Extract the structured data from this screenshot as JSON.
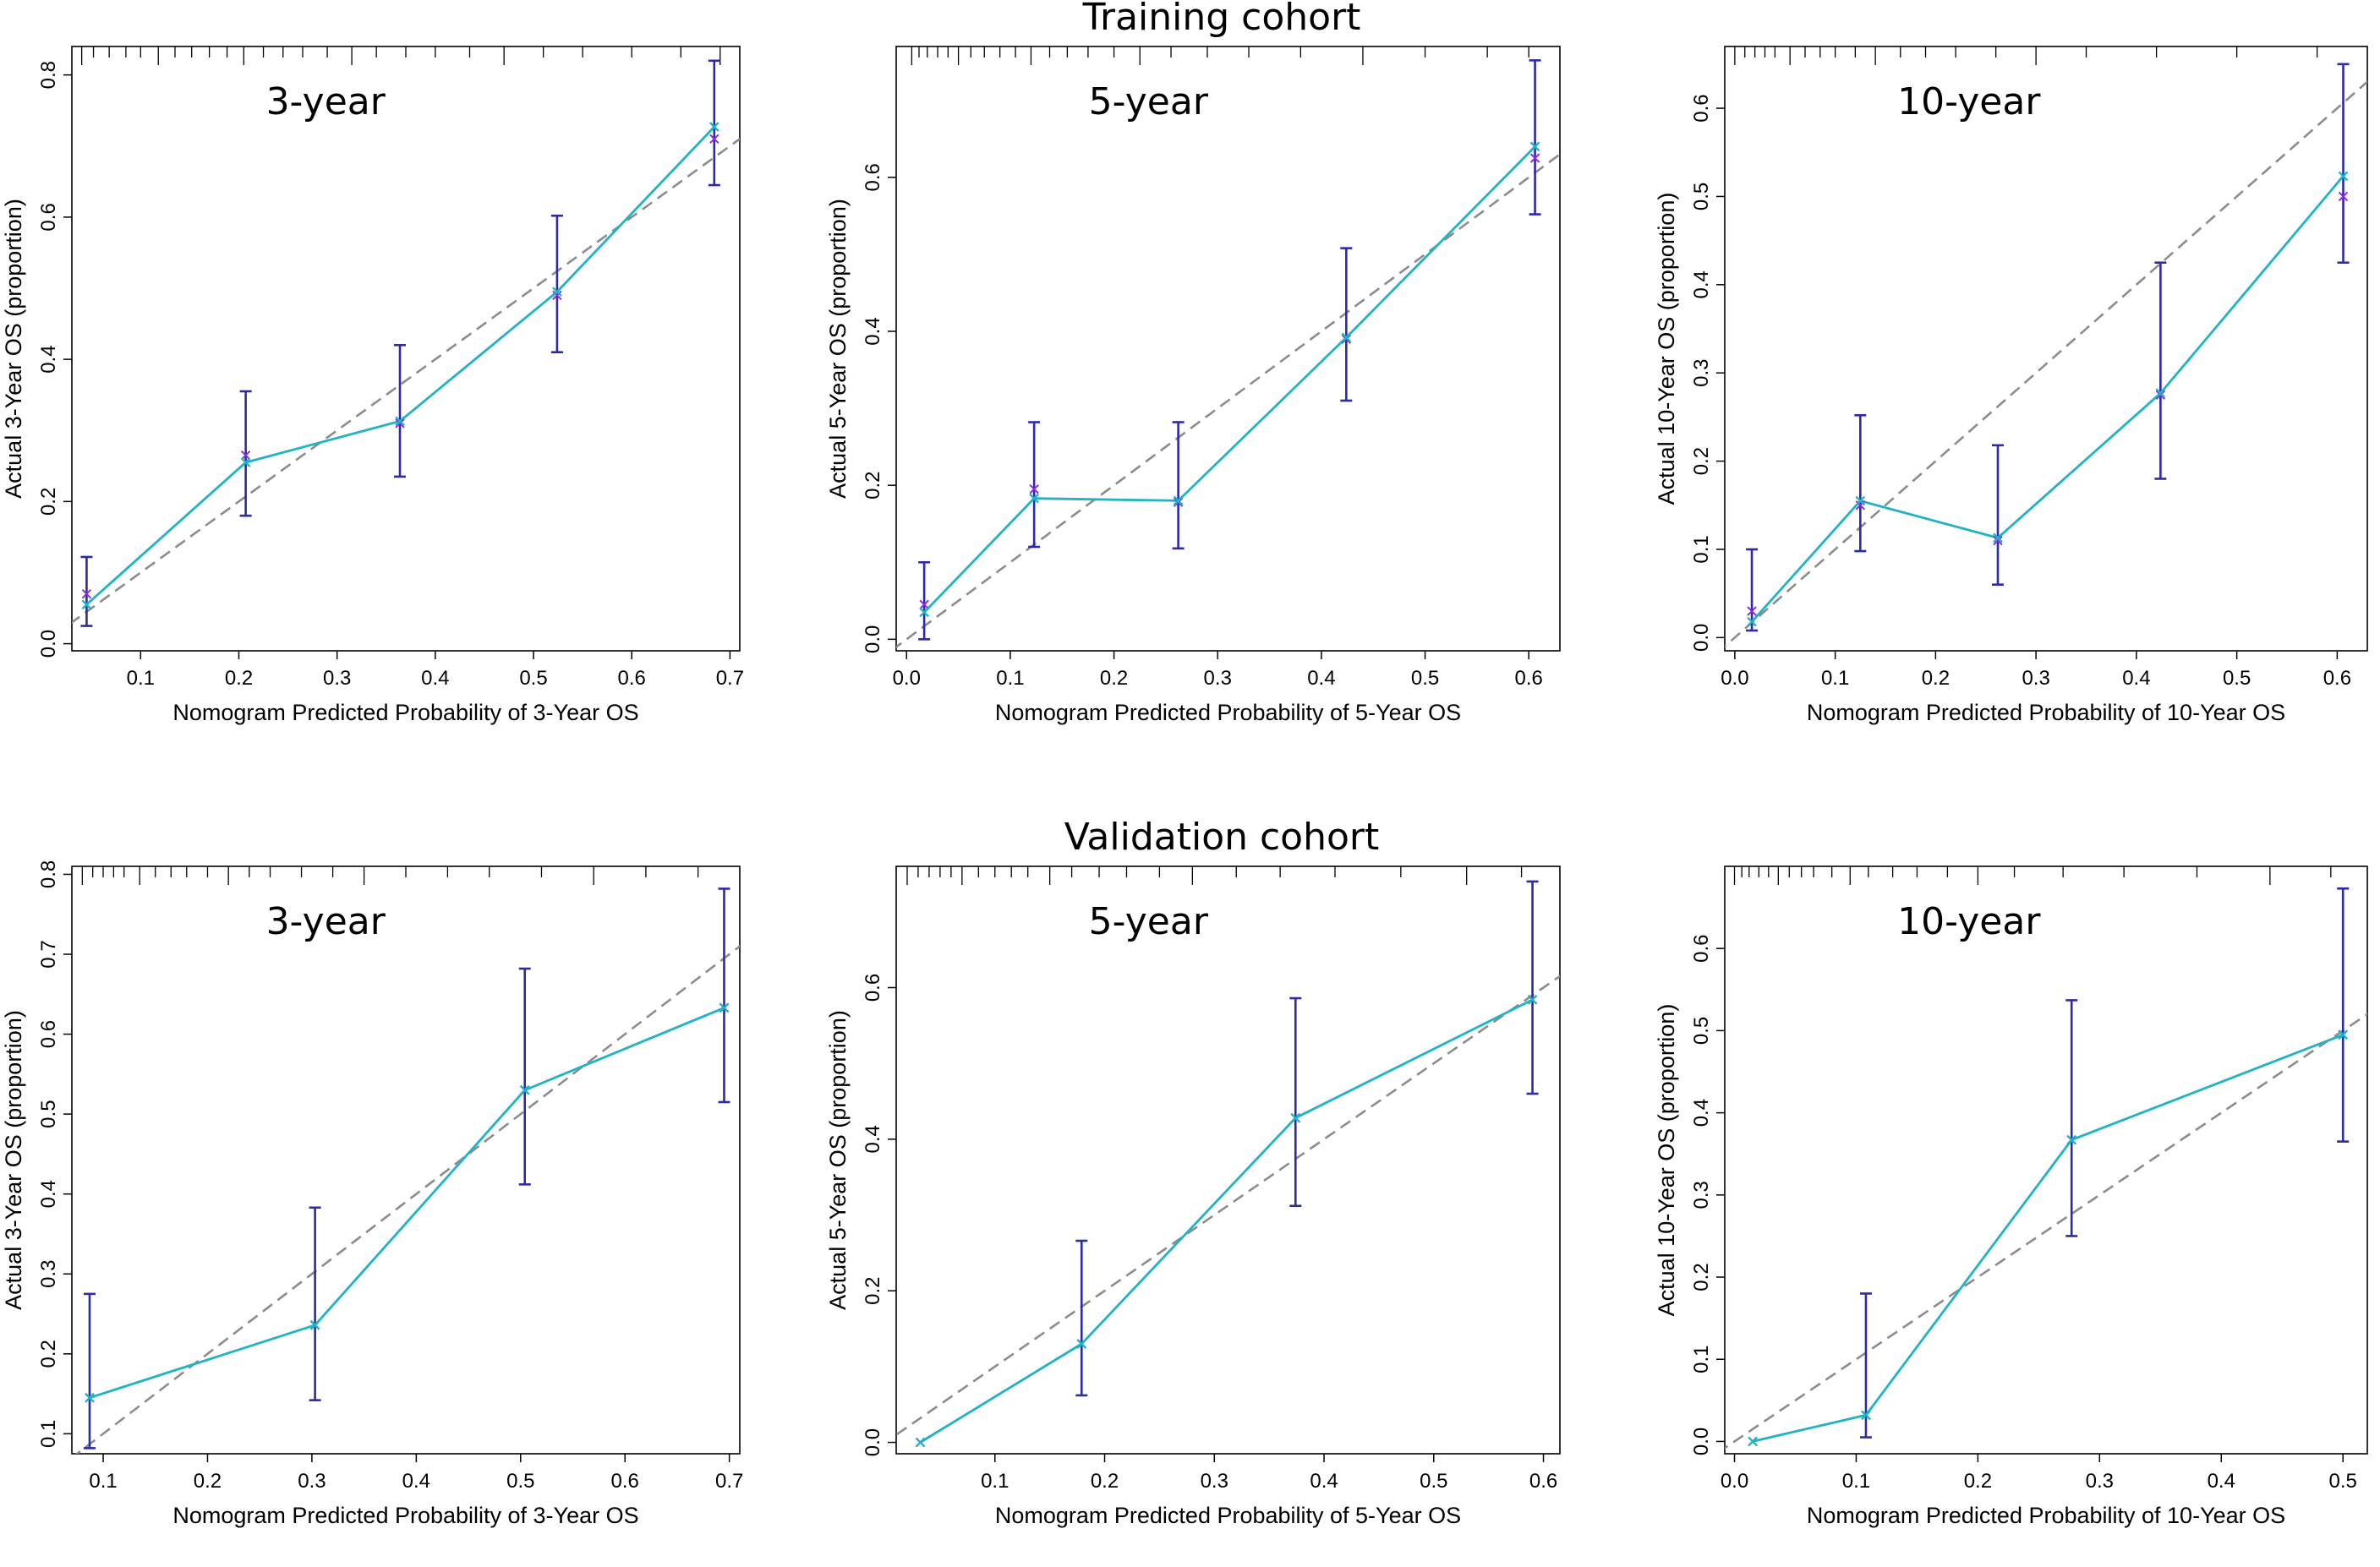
{
  "figure": {
    "training_title": "Training cohort",
    "validation_title": "Validation cohort"
  },
  "colors": {
    "calibration_line": "#1fb3c3",
    "error_bar": "#2b2ba8",
    "ideal_line": "#8c8c8c",
    "apparent_marker": "#8a2be2",
    "axis": "#000000"
  },
  "chart_data": [
    {
      "type": "line",
      "cohort": "Training cohort",
      "title": "3-year",
      "xlabel": "Nomogram Predicted Probability of 3-Year OS",
      "ylabel": "Actual 3-Year OS (proportion)",
      "xlim": [
        0.03,
        0.71
      ],
      "ylim": [
        -0.01,
        0.84
      ],
      "xticks": [
        0.1,
        0.2,
        0.3,
        0.4,
        0.5,
        0.6,
        0.7
      ],
      "xtick_labels": [
        "0.1",
        "0.2",
        "0.3",
        "0.4",
        "0.5",
        "0.6",
        "0.7"
      ],
      "yticks": [
        0.0,
        0.2,
        0.4,
        0.6,
        0.8
      ],
      "ytick_labels": [
        "0.0",
        "0.2",
        "0.4",
        "0.6",
        "0.8"
      ],
      "x": [
        0.045,
        0.207,
        0.364,
        0.524,
        0.684
      ],
      "observed": [
        0.055,
        0.255,
        0.313,
        0.495,
        0.727
      ],
      "apparent": [
        0.07,
        0.265,
        0.31,
        0.49,
        0.71
      ],
      "ci_lower": [
        0.025,
        0.18,
        0.235,
        0.41,
        0.645
      ],
      "ci_upper": [
        0.122,
        0.355,
        0.42,
        0.602,
        0.82
      ],
      "rug": [
        0.04,
        0.052,
        0.068,
        0.085,
        0.1,
        0.118,
        0.135,
        0.152,
        0.17,
        0.188,
        0.205,
        0.225,
        0.245,
        0.265,
        0.29,
        0.315,
        0.34,
        0.37,
        0.4,
        0.435,
        0.47,
        0.51,
        0.55,
        0.6,
        0.65,
        0.69
      ]
    },
    {
      "type": "line",
      "cohort": "Training cohort",
      "title": "5-year",
      "xlabel": "Nomogram Predicted Probability of 5-Year OS",
      "ylabel": "Actual 5-Year OS (proportion)",
      "xlim": [
        -0.01,
        0.63
      ],
      "ylim": [
        -0.015,
        0.77
      ],
      "xticks": [
        0.0,
        0.1,
        0.2,
        0.3,
        0.4,
        0.5,
        0.6
      ],
      "xtick_labels": [
        "0.0",
        "0.1",
        "0.2",
        "0.3",
        "0.4",
        "0.5",
        "0.6"
      ],
      "yticks": [
        0.0,
        0.2,
        0.4,
        0.6
      ],
      "ytick_labels": [
        "0.0",
        "0.2",
        "0.4",
        "0.6"
      ],
      "x": [
        0.017,
        0.123,
        0.262,
        0.424,
        0.606
      ],
      "observed": [
        0.035,
        0.183,
        0.18,
        0.392,
        0.64
      ],
      "apparent": [
        0.045,
        0.195,
        0.178,
        0.39,
        0.625
      ],
      "ci_lower": [
        0.0,
        0.12,
        0.118,
        0.31,
        0.552
      ],
      "ci_upper": [
        0.1,
        0.282,
        0.282,
        0.508,
        0.752
      ],
      "rug": [
        0.005,
        0.012,
        0.02,
        0.03,
        0.04,
        0.05,
        0.062,
        0.075,
        0.09,
        0.105,
        0.12,
        0.138,
        0.155,
        0.175,
        0.2,
        0.225,
        0.255,
        0.29,
        0.33,
        0.38,
        0.44,
        0.5,
        0.56,
        0.6
      ]
    },
    {
      "type": "line",
      "cohort": "Training cohort",
      "title": "10-year",
      "xlabel": "Nomogram Predicted Probability of 10-Year OS",
      "ylabel": "Actual 10-Year OS (proportion)",
      "xlim": [
        -0.01,
        0.63
      ],
      "ylim": [
        -0.015,
        0.67
      ],
      "xticks": [
        0.0,
        0.1,
        0.2,
        0.3,
        0.4,
        0.5,
        0.6
      ],
      "xtick_labels": [
        "0.0",
        "0.1",
        "0.2",
        "0.3",
        "0.4",
        "0.5",
        "0.6"
      ],
      "yticks": [
        0.0,
        0.1,
        0.2,
        0.3,
        0.4,
        0.5,
        0.6
      ],
      "ytick_labels": [
        "0.0",
        "0.1",
        "0.2",
        "0.3",
        "0.4",
        "0.5",
        "0.6"
      ],
      "x": [
        0.017,
        0.125,
        0.262,
        0.424,
        0.606
      ],
      "observed": [
        0.018,
        0.155,
        0.113,
        0.277,
        0.523
      ],
      "apparent": [
        0.03,
        0.15,
        0.11,
        0.275,
        0.5
      ],
      "ci_lower": [
        0.008,
        0.098,
        0.06,
        0.18,
        0.425
      ],
      "ci_upper": [
        0.1,
        0.252,
        0.218,
        0.425,
        0.65
      ],
      "rug": [
        0.0,
        0.01,
        0.02,
        0.03,
        0.04,
        0.055,
        0.07,
        0.085,
        0.1,
        0.12,
        0.14,
        0.165,
        0.19,
        0.22,
        0.26,
        0.3,
        0.35,
        0.42,
        0.5,
        0.58
      ]
    },
    {
      "type": "line",
      "cohort": "Validation cohort",
      "title": "3-year",
      "xlabel": "Nomogram Predicted Probability of 3-Year OS",
      "ylabel": "Actual 3-Year OS (proportion)",
      "xlim": [
        0.07,
        0.71
      ],
      "ylim": [
        0.075,
        0.81
      ],
      "xticks": [
        0.1,
        0.2,
        0.3,
        0.4,
        0.5,
        0.6,
        0.7
      ],
      "xtick_labels": [
        "0.1",
        "0.2",
        "0.3",
        "0.4",
        "0.5",
        "0.6",
        "0.7"
      ],
      "yticks": [
        0.1,
        0.2,
        0.3,
        0.4,
        0.5,
        0.6,
        0.7,
        0.8
      ],
      "ytick_labels": [
        "0.1",
        "0.2",
        "0.3",
        "0.4",
        "0.5",
        "0.6",
        "0.7",
        "0.8"
      ],
      "x": [
        0.087,
        0.303,
        0.504,
        0.695
      ],
      "observed": [
        0.145,
        0.236,
        0.53,
        0.633
      ],
      "apparent": [
        0.145,
        0.236,
        0.53,
        0.633
      ],
      "ci_lower": [
        0.082,
        0.142,
        0.412,
        0.515
      ],
      "ci_upper": [
        0.275,
        0.383,
        0.682,
        0.782
      ],
      "rug": [
        0.08,
        0.09,
        0.1,
        0.11,
        0.12,
        0.135,
        0.15,
        0.165,
        0.18,
        0.2,
        0.22,
        0.24,
        0.26,
        0.29,
        0.32,
        0.35,
        0.39,
        0.43,
        0.47,
        0.52,
        0.57,
        0.62,
        0.67
      ]
    },
    {
      "type": "line",
      "cohort": "Validation cohort",
      "title": "5-year",
      "xlabel": "Nomogram Predicted Probability of 5-Year OS",
      "ylabel": "Actual 5-Year OS (proportion)",
      "xlim": [
        0.01,
        0.615
      ],
      "ylim": [
        -0.015,
        0.76
      ],
      "xticks": [
        0.1,
        0.2,
        0.3,
        0.4,
        0.5,
        0.6
      ],
      "xtick_labels": [
        "0.1",
        "0.2",
        "0.3",
        "0.4",
        "0.5",
        "0.6"
      ],
      "yticks": [
        0.0,
        0.2,
        0.4,
        0.6
      ],
      "ytick_labels": [
        "0.0",
        "0.2",
        "0.4",
        "0.6"
      ],
      "x": [
        0.032,
        0.179,
        0.374,
        0.59
      ],
      "observed": [
        0.0,
        0.13,
        0.428,
        0.584
      ],
      "apparent": [
        0.0,
        0.13,
        0.428,
        0.584
      ],
      "ci_lower": [
        0.0,
        0.062,
        0.312,
        0.46
      ],
      "ci_upper": [
        0.0,
        0.266,
        0.586,
        0.74
      ],
      "rug": [
        0.02,
        0.03,
        0.04,
        0.05,
        0.06,
        0.07,
        0.085,
        0.1,
        0.115,
        0.13,
        0.15,
        0.17,
        0.195,
        0.22,
        0.25,
        0.28,
        0.32,
        0.36,
        0.41,
        0.47,
        0.53,
        0.58
      ]
    },
    {
      "type": "line",
      "cohort": "Validation cohort",
      "title": "10-year",
      "xlabel": "Nomogram Predicted Probability of 10-Year OS",
      "ylabel": "Actual 10-Year OS (proportion)",
      "xlim": [
        -0.008,
        0.52
      ],
      "ylim": [
        -0.015,
        0.7
      ],
      "xticks": [
        0.0,
        0.1,
        0.2,
        0.3,
        0.4,
        0.5
      ],
      "xtick_labels": [
        "0.0",
        "0.1",
        "0.2",
        "0.3",
        "0.4",
        "0.5"
      ],
      "yticks": [
        0.0,
        0.1,
        0.2,
        0.3,
        0.4,
        0.5,
        0.6
      ],
      "ytick_labels": [
        "0.0",
        "0.1",
        "0.2",
        "0.3",
        "0.4",
        "0.5",
        "0.6"
      ],
      "x": [
        0.015,
        0.108,
        0.277,
        0.5
      ],
      "observed": [
        0.0,
        0.032,
        0.367,
        0.495
      ],
      "apparent": [
        0.0,
        0.032,
        0.367,
        0.495
      ],
      "ci_lower": [
        0.0,
        0.005,
        0.25,
        0.365
      ],
      "ci_upper": [
        0.0,
        0.18,
        0.537,
        0.673
      ],
      "rug": [
        0.0,
        0.006,
        0.012,
        0.02,
        0.028,
        0.036,
        0.045,
        0.055,
        0.065,
        0.08,
        0.095,
        0.11,
        0.13,
        0.15,
        0.175,
        0.2,
        0.23,
        0.27,
        0.32,
        0.38,
        0.44,
        0.49
      ]
    }
  ]
}
